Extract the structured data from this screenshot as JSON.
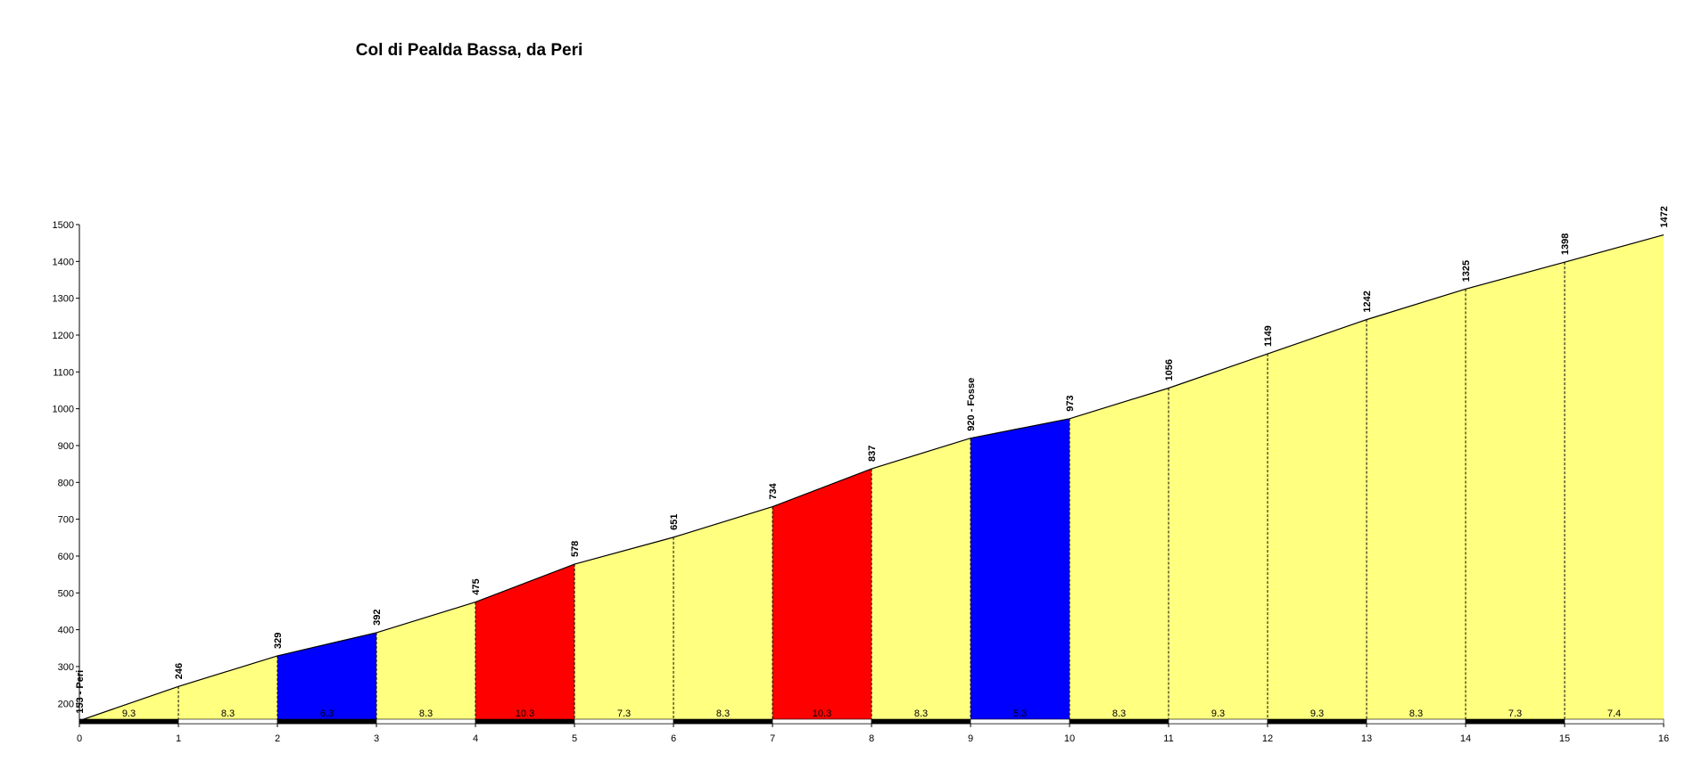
{
  "chart_data": {
    "type": "profile",
    "title": "Col di Pealda Bassa, da Peri",
    "x": [
      0,
      1,
      2,
      3,
      4,
      5,
      6,
      7,
      8,
      9,
      10,
      11,
      12,
      13,
      14,
      15,
      16
    ],
    "values": [
      153,
      246,
      329,
      392,
      475,
      578,
      651,
      734,
      837,
      920,
      973,
      1056,
      1149,
      1242,
      1325,
      1398,
      1472
    ],
    "value_labels": [
      "153 - Peri",
      "246",
      "329",
      "392",
      "475",
      "578",
      "651",
      "734",
      "837",
      "920 - Fosse",
      "973",
      "1056",
      "1149",
      "1242",
      "1325",
      "1398",
      "1472"
    ],
    "segments": {
      "values": [
        9.3,
        8.3,
        6.3,
        8.3,
        10.3,
        7.3,
        8.3,
        10.3,
        8.3,
        5.3,
        8.3,
        9.3,
        9.3,
        8.3,
        7.3,
        7.4
      ],
      "colors": [
        "#ffff80",
        "#ffff80",
        "#0000ff",
        "#ffff80",
        "#ff0000",
        "#ffff80",
        "#ffff80",
        "#ff0000",
        "#ffff80",
        "#0000ff",
        "#ffff80",
        "#ffff80",
        "#ffff80",
        "#ffff80",
        "#ffff80",
        "#ffff80"
      ]
    },
    "xlim": [
      0,
      16
    ],
    "xticks": [
      0,
      1,
      2,
      3,
      4,
      5,
      6,
      7,
      8,
      9,
      10,
      11,
      12,
      13,
      14,
      15,
      16
    ],
    "ylim": [
      145,
      1500
    ],
    "yticks": [
      200,
      300,
      400,
      500,
      600,
      700,
      800,
      900,
      1000,
      1100,
      1200,
      1300,
      1400,
      1500
    ]
  }
}
